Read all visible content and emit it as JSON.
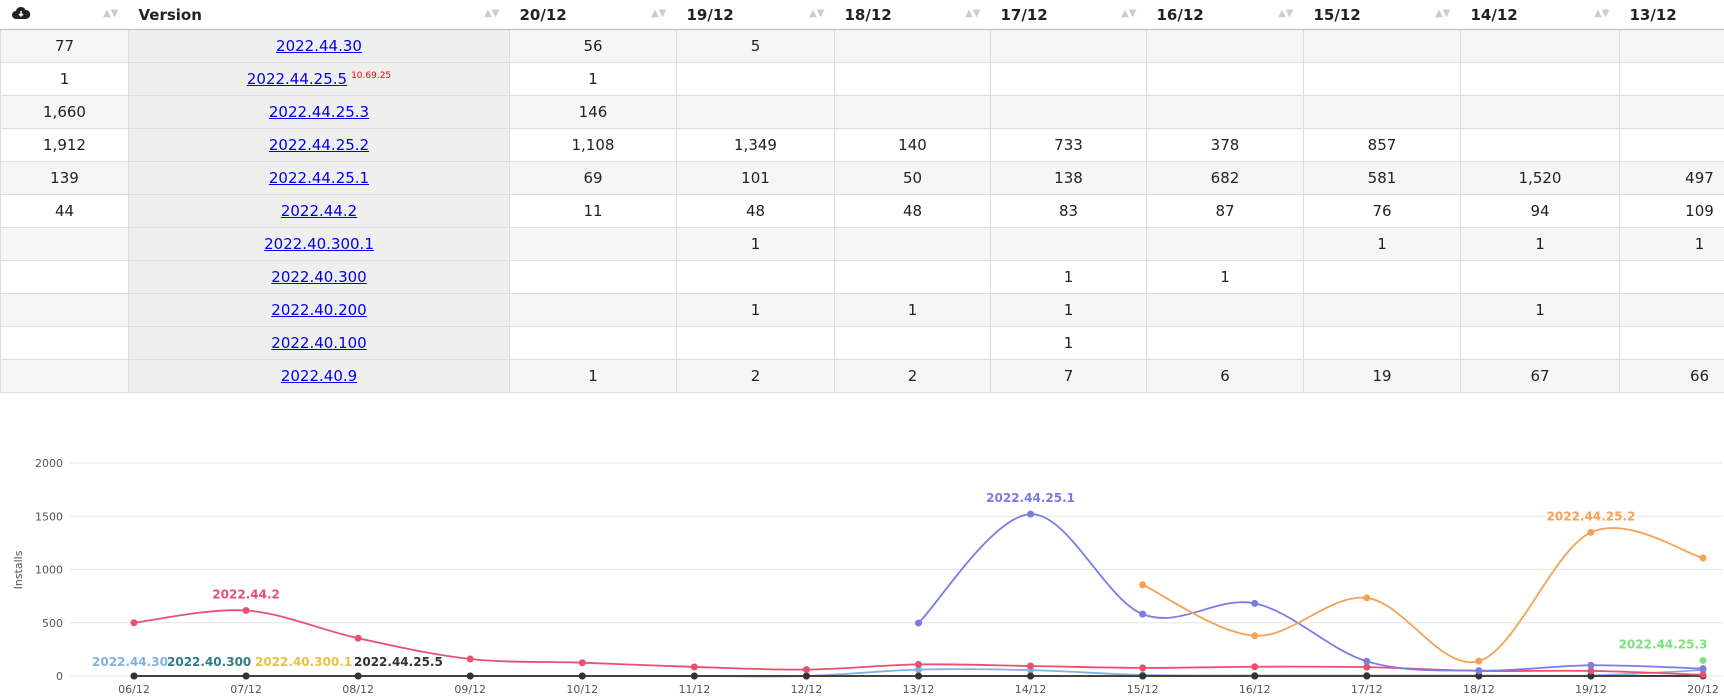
{
  "table": {
    "headers": [
      "Version",
      "20/12",
      "19/12",
      "18/12",
      "17/12",
      "16/12",
      "15/12",
      "14/12",
      "13/12"
    ],
    "rows": [
      {
        "total": "77",
        "version": "2022.44.30",
        "cells": [
          "56",
          "5",
          null,
          null,
          null,
          null,
          null,
          null
        ]
      },
      {
        "total": "1",
        "version": "2022.44.25.5",
        "build": "10.69.25",
        "cells": [
          "1",
          null,
          null,
          null,
          null,
          null,
          null,
          null
        ]
      },
      {
        "total": "1,660",
        "version": "2022.44.25.3",
        "cells": [
          "146",
          null,
          null,
          null,
          null,
          null,
          null,
          null
        ]
      },
      {
        "total": "1,912",
        "version": "2022.44.25.2",
        "cells": [
          "1,108",
          "1,349",
          "140",
          "733",
          "378",
          "857",
          null,
          null
        ]
      },
      {
        "total": "139",
        "version": "2022.44.25.1",
        "cells": [
          "69",
          "101",
          "50",
          "138",
          "682",
          "581",
          "1,520",
          "497"
        ]
      },
      {
        "total": "44",
        "version": "2022.44.2",
        "cells": [
          "11",
          "48",
          "48",
          "83",
          "87",
          "76",
          "94",
          "109"
        ]
      },
      {
        "total": null,
        "version": "2022.40.300.1",
        "cells": [
          null,
          "1",
          null,
          null,
          null,
          "1",
          "1",
          "1"
        ]
      },
      {
        "total": null,
        "version": "2022.40.300",
        "cells": [
          null,
          null,
          null,
          "1",
          "1",
          null,
          null,
          null
        ]
      },
      {
        "total": null,
        "version": "2022.40.200",
        "cells": [
          null,
          "1",
          "1",
          "1",
          null,
          null,
          "1",
          null
        ]
      },
      {
        "total": null,
        "version": "2022.40.100",
        "cells": [
          null,
          null,
          null,
          "1",
          null,
          null,
          null,
          null
        ]
      },
      {
        "total": null,
        "version": "2022.40.9",
        "cells": [
          "1",
          "2",
          "2",
          "7",
          "6",
          "19",
          "67",
          "66"
        ]
      }
    ]
  },
  "chart_data": {
    "type": "line",
    "y_label": "Installs",
    "categories": [
      "06/12",
      "07/12",
      "08/12",
      "09/12",
      "10/12",
      "11/12",
      "12/12",
      "13/12",
      "14/12",
      "15/12",
      "16/12",
      "17/12",
      "18/12",
      "19/12",
      "20/12"
    ],
    "ylim": [
      0,
      2000
    ],
    "yticks": [
      0,
      500,
      1000,
      1500,
      2000
    ],
    "grid": true,
    "series": [
      {
        "name": "2022.44.30",
        "color": "#7fb3e6",
        "values": [
          0,
          0,
          0,
          0,
          0,
          0,
          0,
          60,
          55,
          10,
          5,
          5,
          5,
          5,
          56
        ]
      },
      {
        "name": "2022.40.300",
        "color": "#2e7d82",
        "values": [
          0,
          0,
          0,
          0,
          0,
          0,
          0,
          0,
          0,
          0,
          1,
          1,
          0,
          0,
          0
        ]
      },
      {
        "name": "2022.40.300.1",
        "color": "#e6c243",
        "values": [
          0,
          0,
          0,
          0,
          0,
          0,
          0,
          1,
          1,
          1,
          0,
          0,
          0,
          1,
          0
        ]
      },
      {
        "name": "2022.44.25.5",
        "color": "#333333",
        "values": [
          0,
          0,
          0,
          0,
          0,
          0,
          0,
          0,
          0,
          0,
          0,
          0,
          0,
          0,
          1
        ]
      },
      {
        "name": "2022.44.2",
        "color": "#e9506f",
        "values": [
          500,
          615,
          355,
          160,
          125,
          85,
          60,
          109,
          94,
          76,
          87,
          83,
          48,
          48,
          11
        ]
      },
      {
        "name": "2022.44.25.1",
        "color": "#7b7be3",
        "values": [
          null,
          null,
          null,
          null,
          null,
          null,
          null,
          497,
          1520,
          581,
          682,
          138,
          50,
          101,
          69
        ]
      },
      {
        "name": "2022.44.25.2",
        "color": "#f5a254",
        "values": [
          null,
          null,
          null,
          null,
          null,
          null,
          null,
          null,
          null,
          857,
          378,
          733,
          140,
          1349,
          1108
        ]
      },
      {
        "name": "2022.44.25.3",
        "color": "#7be37b",
        "values": [
          null,
          null,
          null,
          null,
          null,
          null,
          null,
          null,
          null,
          null,
          null,
          null,
          null,
          null,
          146
        ]
      }
    ]
  }
}
